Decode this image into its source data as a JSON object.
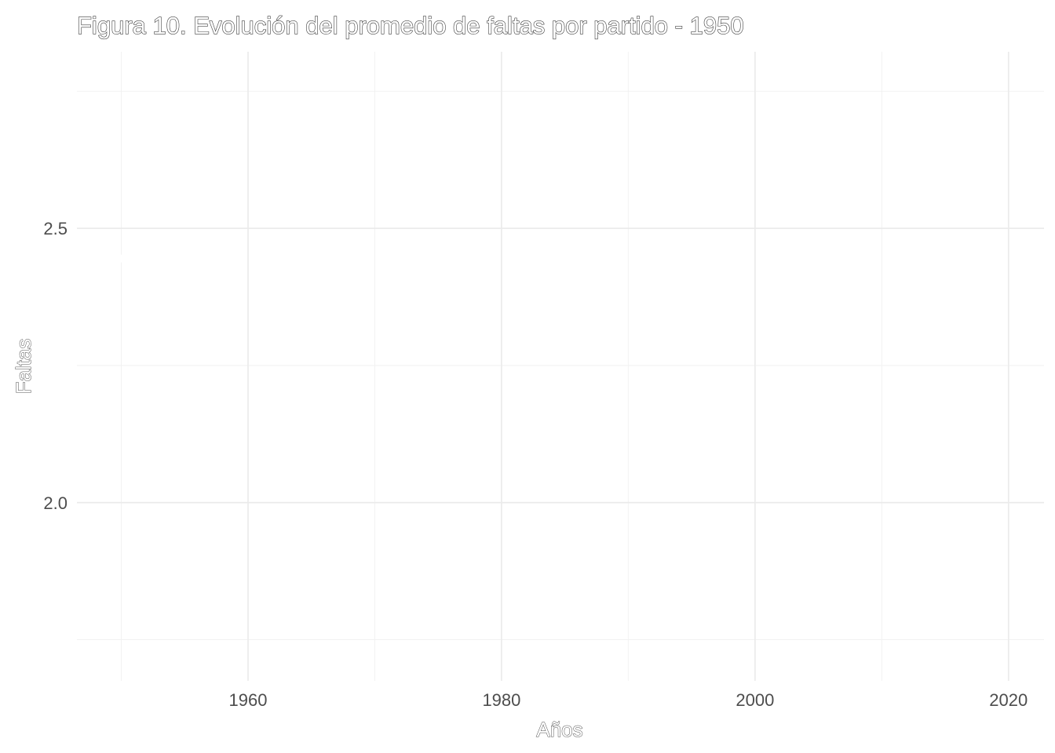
{
  "chart_data": {
    "type": "line",
    "title": "Figura 10. Evolución del promedio de faltas por partido - 1950",
    "xlabel": "Años",
    "ylabel": "Faltas",
    "xlim": [
      1946.5,
      2022.8
    ],
    "ylim": [
      1.675,
      2.822
    ],
    "x_ticks": [
      1960,
      1980,
      2000,
      2020
    ],
    "x_tick_labels": [
      "1960",
      "1980",
      "2000",
      "2020"
    ],
    "x_minor_ticks": [
      1950,
      1970,
      1990,
      2010
    ],
    "y_ticks": [
      2.0,
      2.5
    ],
    "y_tick_labels": [
      "2.0",
      "2.5"
    ],
    "y_minor_ticks": [
      1.75,
      2.25,
      2.75
    ],
    "grid": true,
    "legend": "none",
    "series": [
      {
        "color": "#ffffff",
        "points": [
          {
            "x": 1950,
            "y": 2.45
          },
          {
            "x": 1950,
            "y": 2.44
          }
        ]
      }
    ]
  }
}
